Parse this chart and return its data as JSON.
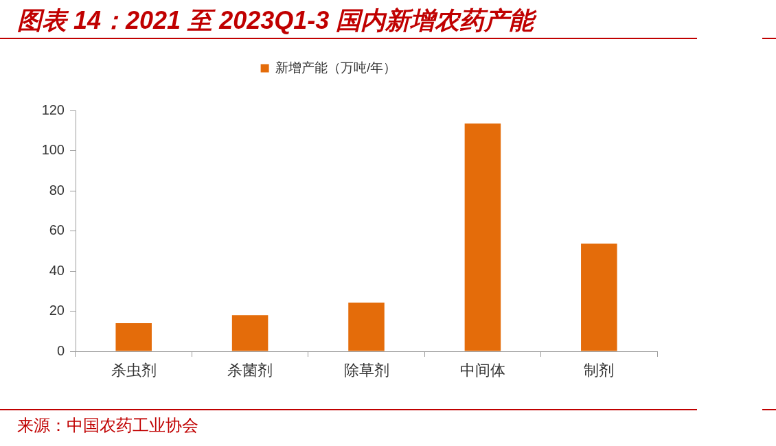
{
  "chart_data": {
    "type": "bar",
    "title": "图表 14：2021 至 2023Q1-3 国内新增农药产能",
    "categories": [
      "杀虫剂",
      "杀菌剂",
      "除草剂",
      "中间体",
      "制剂"
    ],
    "series": [
      {
        "name": "新增产能（万吨/年）",
        "color": "#e46c0a",
        "values": [
          14,
          18,
          24.3,
          113.5,
          53.7
        ]
      }
    ],
    "ylim": [
      0,
      120
    ],
    "yticks": [
      0,
      20,
      40,
      60,
      80,
      100,
      120
    ],
    "legend": "top",
    "annotations": [
      "来源：中国农药工业协会"
    ]
  }
}
